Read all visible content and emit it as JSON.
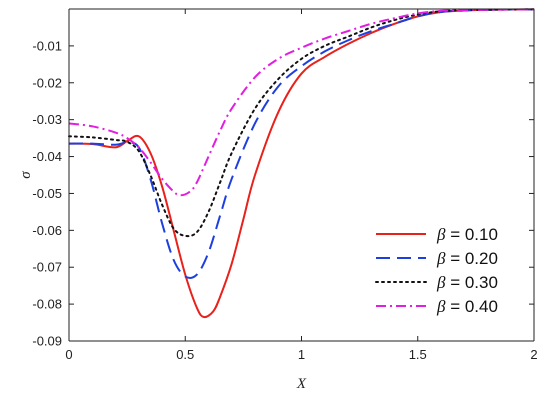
{
  "chart_data": {
    "type": "line",
    "title": "",
    "xlabel": "X",
    "ylabel": "σ",
    "xlim": [
      0,
      2
    ],
    "ylim": [
      -0.09,
      0.0
    ],
    "xticks": [
      "0",
      "0.5",
      "1",
      "1.5",
      "2"
    ],
    "yticks": [
      "-0.01",
      "-0.02",
      "-0.03",
      "-0.04",
      "-0.05",
      "-0.06",
      "-0.07",
      "-0.08",
      "-0.09"
    ],
    "legend_position": "bottom-right",
    "grid": false,
    "series": [
      {
        "name": "β = 0.10",
        "legend_symbol": "β",
        "legend_value": " = 0.10",
        "color": "#e8211b",
        "dash": "solid",
        "x": [
          0,
          0.1,
          0.2,
          0.25,
          0.3,
          0.35,
          0.4,
          0.45,
          0.5,
          0.55,
          0.58,
          0.62,
          0.65,
          0.7,
          0.75,
          0.8,
          0.9,
          1.0,
          1.1,
          1.2,
          1.3,
          1.4,
          1.5,
          1.6,
          1.7,
          1.8,
          2.0
        ],
        "y": [
          -0.0365,
          -0.0366,
          -0.0375,
          -0.0358,
          -0.0345,
          -0.039,
          -0.048,
          -0.06,
          -0.072,
          -0.081,
          -0.0835,
          -0.082,
          -0.078,
          -0.069,
          -0.057,
          -0.045,
          -0.028,
          -0.0175,
          -0.013,
          -0.0095,
          -0.0065,
          -0.004,
          -0.002,
          -0.0008,
          -0.0004,
          -0.0002,
          -0.0001
        ]
      },
      {
        "name": "β = 0.20",
        "legend_symbol": "β",
        "legend_value": " = 0.20",
        "color": "#1e3fe0",
        "dash": "dashed",
        "x": [
          0,
          0.1,
          0.2,
          0.25,
          0.3,
          0.35,
          0.4,
          0.45,
          0.5,
          0.55,
          0.6,
          0.65,
          0.7,
          0.8,
          0.9,
          1.0,
          1.1,
          1.2,
          1.3,
          1.4,
          1.5,
          1.6,
          1.7,
          1.8,
          2.0
        ],
        "y": [
          -0.0365,
          -0.0365,
          -0.0368,
          -0.0362,
          -0.0375,
          -0.046,
          -0.058,
          -0.068,
          -0.0725,
          -0.072,
          -0.066,
          -0.056,
          -0.046,
          -0.031,
          -0.021,
          -0.0155,
          -0.0115,
          -0.0085,
          -0.006,
          -0.004,
          -0.002,
          -0.0008,
          -0.0004,
          -0.0002,
          -0.0001
        ]
      },
      {
        "name": "β = 0.30",
        "legend_symbol": "β",
        "legend_value": " = 0.30",
        "color": "#111111",
        "dash": "dotted",
        "x": [
          0,
          0.1,
          0.2,
          0.25,
          0.3,
          0.35,
          0.4,
          0.45,
          0.5,
          0.55,
          0.6,
          0.65,
          0.7,
          0.8,
          0.9,
          1.0,
          1.1,
          1.2,
          1.3,
          1.4,
          1.5,
          1.6,
          1.7,
          1.8,
          2.0
        ],
        "y": [
          -0.0345,
          -0.0348,
          -0.0355,
          -0.036,
          -0.0385,
          -0.045,
          -0.053,
          -0.0595,
          -0.0615,
          -0.0605,
          -0.055,
          -0.047,
          -0.039,
          -0.027,
          -0.019,
          -0.0135,
          -0.01,
          -0.0075,
          -0.005,
          -0.003,
          -0.0015,
          -0.0006,
          -0.0003,
          -0.0002,
          -0.0001
        ]
      },
      {
        "name": "β = 0.40",
        "legend_symbol": "β",
        "legend_value": " = 0.40",
        "color": "#e21ee0",
        "dash": "dashdot",
        "x": [
          0,
          0.1,
          0.2,
          0.25,
          0.3,
          0.35,
          0.4,
          0.45,
          0.48,
          0.52,
          0.55,
          0.6,
          0.65,
          0.7,
          0.8,
          0.9,
          1.0,
          1.1,
          1.2,
          1.3,
          1.4,
          1.5,
          1.6,
          1.7,
          1.8,
          2.0
        ],
        "y": [
          -0.031,
          -0.0318,
          -0.0335,
          -0.035,
          -0.0375,
          -0.0415,
          -0.046,
          -0.0495,
          -0.0505,
          -0.0495,
          -0.047,
          -0.04,
          -0.033,
          -0.027,
          -0.0185,
          -0.0135,
          -0.0105,
          -0.008,
          -0.006,
          -0.004,
          -0.0025,
          -0.0012,
          -0.0005,
          -0.0003,
          -0.0002,
          -0.0001
        ]
      }
    ]
  }
}
